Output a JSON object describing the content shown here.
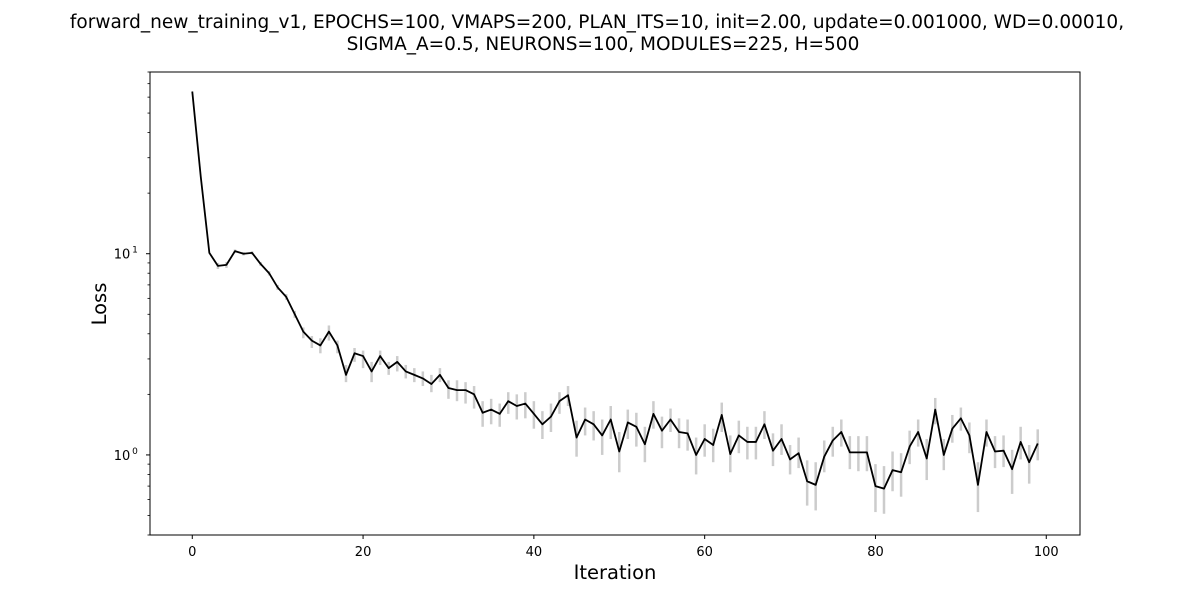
{
  "chart_data": {
    "type": "line",
    "title_lines": [
      "forward_new_training_v1, EPOCHS=100, VMAPS=200, PLAN_ITS=10, init=2.00, update=0.001000, WD=0.00010,",
      "SIGMA_A=0.5, NEURONS=100, MODULES=225, H=500"
    ],
    "xlabel": "Iteration",
    "ylabel": "Loss",
    "yscale": "log",
    "xlim": [
      -4.95,
      103.95
    ],
    "ylim": [
      0.4,
      80
    ],
    "xticks": [
      0,
      20,
      40,
      60,
      80,
      100
    ],
    "yticks": [
      {
        "value": 1,
        "base": "10",
        "exp": "0"
      },
      {
        "value": 10,
        "base": "10",
        "exp": "1"
      }
    ],
    "grid": false,
    "colors": {
      "line": "#000000",
      "errorbar": "#cccccc",
      "frame": "#000000"
    },
    "series": [
      {
        "x": [
          0,
          1,
          2,
          3,
          4,
          5,
          6,
          7,
          8,
          9,
          10,
          11,
          12,
          13,
          14,
          15,
          16,
          17,
          18,
          19,
          20,
          21,
          22,
          23,
          24,
          25,
          26,
          27,
          28,
          29,
          30,
          31,
          32,
          33,
          34,
          35,
          36,
          37,
          38,
          39,
          40,
          41,
          42,
          43,
          44,
          45,
          46,
          47,
          48,
          49,
          50,
          51,
          52,
          53,
          54,
          55,
          56,
          57,
          58,
          59,
          60,
          61,
          62,
          63,
          64,
          65,
          66,
          67,
          68,
          69,
          70,
          71,
          72,
          73,
          74,
          75,
          76,
          77,
          78,
          79,
          80,
          81,
          82,
          83,
          84,
          85,
          86,
          87,
          88,
          89,
          90,
          91,
          92,
          93,
          94,
          95,
          96,
          97,
          98,
          99
        ],
        "values": [
          64.0,
          24.0,
          10.1,
          8.7,
          8.8,
          10.3,
          10.0,
          10.1,
          8.9,
          8.0,
          6.8,
          6.1,
          5.0,
          4.1,
          3.7,
          3.5,
          4.1,
          3.5,
          2.5,
          3.2,
          3.1,
          2.6,
          3.1,
          2.7,
          2.9,
          2.6,
          2.5,
          2.4,
          2.25,
          2.5,
          2.15,
          2.1,
          2.1,
          2.0,
          1.62,
          1.68,
          1.6,
          1.85,
          1.75,
          1.8,
          1.6,
          1.42,
          1.55,
          1.85,
          1.98,
          1.22,
          1.5,
          1.42,
          1.25,
          1.5,
          1.04,
          1.45,
          1.38,
          1.13,
          1.6,
          1.32,
          1.5,
          1.3,
          1.28,
          1.0,
          1.2,
          1.12,
          1.58,
          1.01,
          1.25,
          1.16,
          1.16,
          1.42,
          1.05,
          1.2,
          0.95,
          1.02,
          0.74,
          0.71,
          0.98,
          1.18,
          1.3,
          1.03,
          1.03,
          1.03,
          0.7,
          0.68,
          0.84,
          0.82,
          1.1,
          1.3,
          0.96,
          1.68,
          1.0,
          1.35,
          1.52,
          1.25,
          0.71,
          1.3,
          1.04,
          1.05,
          0.85,
          1.16,
          0.92,
          1.14
        ],
        "err_low": [
          64.0,
          24.0,
          10.1,
          8.4,
          8.5,
          10.1,
          9.8,
          9.9,
          8.7,
          7.8,
          6.6,
          5.9,
          4.8,
          3.8,
          3.4,
          3.2,
          3.7,
          3.2,
          2.3,
          2.9,
          2.7,
          2.3,
          2.8,
          2.5,
          2.6,
          2.4,
          2.3,
          2.2,
          2.05,
          2.3,
          1.9,
          1.85,
          1.8,
          1.7,
          1.38,
          1.42,
          1.38,
          1.6,
          1.5,
          1.52,
          1.35,
          1.2,
          1.3,
          1.6,
          1.75,
          0.98,
          1.25,
          1.18,
          1.0,
          1.2,
          0.82,
          1.2,
          1.1,
          0.92,
          1.35,
          1.08,
          1.3,
          1.08,
          1.05,
          0.8,
          0.98,
          0.92,
          1.3,
          0.82,
          1.02,
          0.95,
          0.95,
          1.2,
          0.88,
          1.0,
          0.8,
          0.86,
          0.56,
          0.53,
          0.82,
          0.98,
          1.1,
          0.85,
          0.83,
          0.83,
          0.52,
          0.51,
          0.66,
          0.62,
          0.9,
          1.1,
          0.75,
          1.42,
          0.84,
          1.15,
          1.32,
          1.02,
          0.52,
          1.1,
          0.86,
          0.87,
          0.64,
          0.95,
          0.72,
          0.94
        ],
        "err_high": [
          64.0,
          24.0,
          10.1,
          9.0,
          9.1,
          10.5,
          10.2,
          10.3,
          9.1,
          8.2,
          7.0,
          6.3,
          5.2,
          4.3,
          3.9,
          3.8,
          4.4,
          3.7,
          2.8,
          3.4,
          3.3,
          2.9,
          3.3,
          2.9,
          3.1,
          2.8,
          2.7,
          2.6,
          2.5,
          2.7,
          2.35,
          2.35,
          2.3,
          2.2,
          1.85,
          1.9,
          1.8,
          2.05,
          2.0,
          2.05,
          1.85,
          1.65,
          1.8,
          2.05,
          2.2,
          1.48,
          1.72,
          1.65,
          1.5,
          1.75,
          1.3,
          1.68,
          1.62,
          1.38,
          1.85,
          1.55,
          1.7,
          1.52,
          1.5,
          1.22,
          1.42,
          1.35,
          1.82,
          1.25,
          1.48,
          1.38,
          1.38,
          1.65,
          1.28,
          1.42,
          1.12,
          1.22,
          0.94,
          0.92,
          1.18,
          1.38,
          1.5,
          1.24,
          1.24,
          1.24,
          0.9,
          0.88,
          1.04,
          1.02,
          1.32,
          1.5,
          1.2,
          1.92,
          1.2,
          1.58,
          1.72,
          1.45,
          0.92,
          1.5,
          1.24,
          1.25,
          1.06,
          1.38,
          1.12,
          1.34
        ]
      }
    ]
  }
}
